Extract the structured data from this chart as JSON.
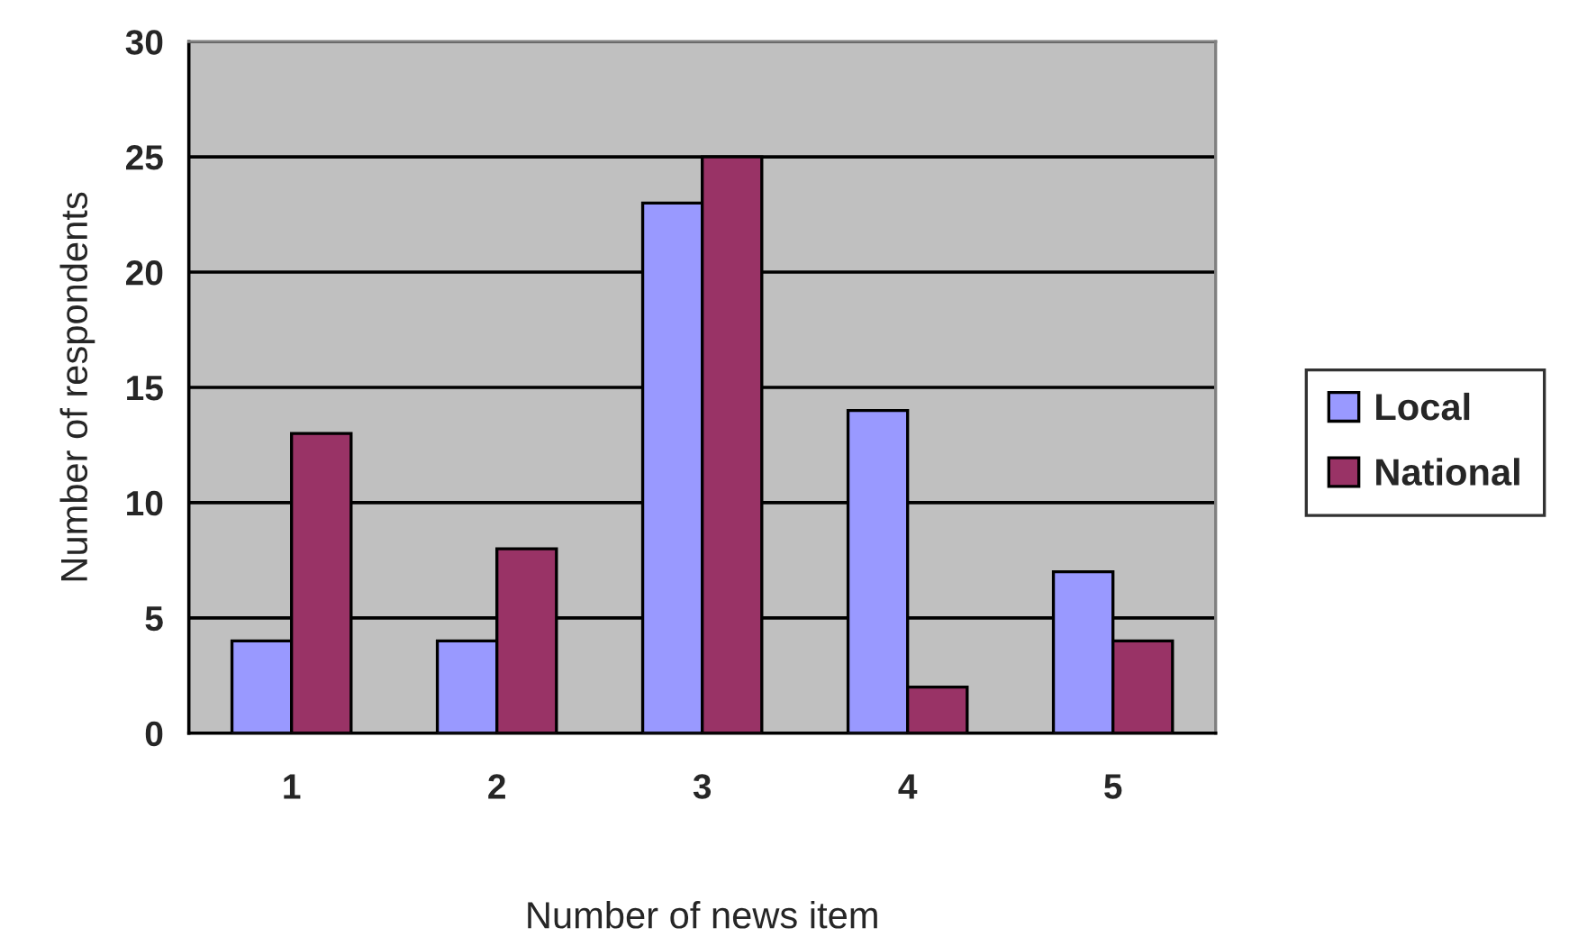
{
  "chart_data": {
    "type": "bar",
    "xlabel": "Number of news item",
    "ylabel": "Number of respondents",
    "categories": [
      "1",
      "2",
      "3",
      "4",
      "5"
    ],
    "series": [
      {
        "name": "Local",
        "color": "#9999ff",
        "values": [
          4,
          4,
          23,
          14,
          7
        ]
      },
      {
        "name": "National",
        "color": "#993366",
        "values": [
          13,
          8,
          25,
          2,
          4
        ]
      }
    ],
    "ylim": [
      0,
      30
    ],
    "yticks": [
      0,
      5,
      10,
      15,
      20,
      25,
      30
    ],
    "grid": "y",
    "legend": "right"
  }
}
